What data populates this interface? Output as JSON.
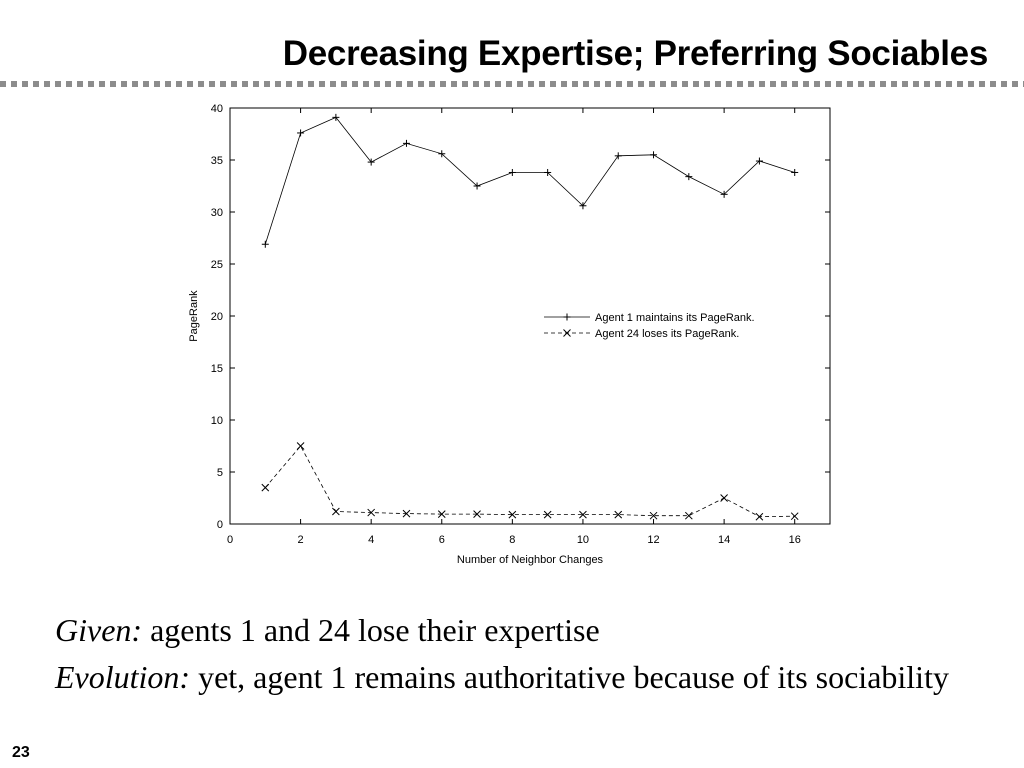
{
  "slide": {
    "title": "Decreasing Expertise; Preferring Sociables",
    "number": "23"
  },
  "caption": {
    "line1_label": "Given:",
    "line1_text": " agents 1 and 24 lose their expertise",
    "line2_label": "Evolution:",
    "line2_text": " yet, agent 1 remains authoritative because of its sociability"
  },
  "chart_data": {
    "type": "line",
    "xlabel": "Number of Neighbor Changes",
    "ylabel": "PageRank",
    "xlim": [
      0,
      17
    ],
    "ylim": [
      0,
      40
    ],
    "xticks": [
      0,
      2,
      4,
      6,
      8,
      10,
      12,
      14,
      16
    ],
    "yticks": [
      0,
      5,
      10,
      15,
      20,
      25,
      30,
      35,
      40
    ],
    "grid": false,
    "legend_position": "center-right",
    "x": [
      1,
      2,
      3,
      4,
      5,
      6,
      7,
      8,
      9,
      10,
      11,
      12,
      13,
      14,
      15,
      16
    ],
    "series": [
      {
        "name": "Agent 1 maintains its PageRank.",
        "marker": "plus",
        "line": "solid",
        "values": [
          26.9,
          37.6,
          39.1,
          34.8,
          36.6,
          35.6,
          32.5,
          33.8,
          33.8,
          30.6,
          35.4,
          35.5,
          33.4,
          31.7,
          34.9,
          33.8
        ]
      },
      {
        "name": "Agent 24 loses its PageRank.",
        "marker": "cross",
        "line": "dashed",
        "values": [
          3.5,
          7.5,
          1.2,
          1.1,
          1.0,
          0.95,
          0.95,
          0.9,
          0.9,
          0.9,
          0.9,
          0.8,
          0.8,
          2.5,
          0.7,
          0.75
        ]
      }
    ]
  }
}
